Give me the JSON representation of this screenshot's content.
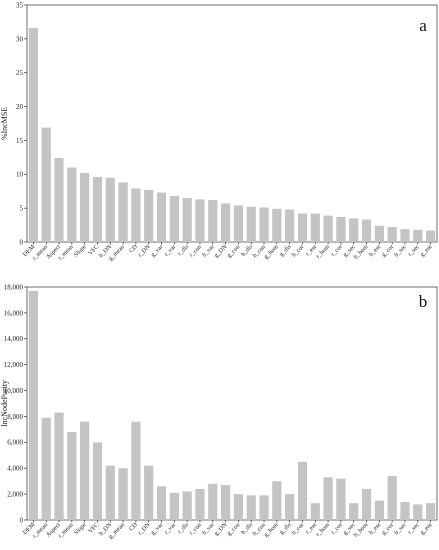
{
  "chart_data": [
    {
      "type": "bar",
      "panel_label": "a",
      "ylabel": "%IncMSE",
      "ylim": [
        0,
        35
      ],
      "yticks": [
        "0",
        "5",
        "10",
        "15",
        "20",
        "25",
        "30",
        "35"
      ],
      "ytick_values": [
        0,
        5,
        10,
        15,
        20,
        25,
        30,
        35
      ],
      "grid": false,
      "categories": [
        "DEM",
        "r_mean",
        "Aspect",
        "r_mean",
        "Slope",
        "VFC",
        "b_DN",
        "g_mean",
        "CD",
        "r_DN",
        "g_var",
        "r_var",
        "r_dis",
        "r_con",
        "b_var",
        "g_DN",
        "g_con",
        "b_dis",
        "b_con",
        "g_hom",
        "g_dis",
        "b_cor",
        "r_ent",
        "r_hom",
        "r_cor",
        "g_sec",
        "b_hom",
        "b_ent",
        "g_cor",
        "b_sec",
        "r_sec",
        "g_ent"
      ],
      "values": [
        31.6,
        16.9,
        12.4,
        11.0,
        10.2,
        9.6,
        9.5,
        8.8,
        7.9,
        7.7,
        7.3,
        6.8,
        6.5,
        6.3,
        6.2,
        5.7,
        5.4,
        5.2,
        5.1,
        4.9,
        4.8,
        4.2,
        4.2,
        3.9,
        3.7,
        3.5,
        3.3,
        2.4,
        2.2,
        1.9,
        1.8,
        1.7
      ]
    },
    {
      "type": "bar",
      "panel_label": "b",
      "ylabel": "IncNodePurity",
      "ylim": [
        0,
        18000
      ],
      "yticks": [
        "0",
        "2,000",
        "4,000",
        "6,000",
        "8,000",
        "10,000",
        "12,000",
        "14,000",
        "16,000",
        "18,000"
      ],
      "ytick_values": [
        0,
        2000,
        4000,
        6000,
        8000,
        10000,
        12000,
        14000,
        16000,
        18000
      ],
      "grid": false,
      "categories": [
        "DEM",
        "r_mean",
        "Aspect",
        "r_mean",
        "Slope",
        "VFC",
        "b_DN",
        "g_mean",
        "CD",
        "r_DN",
        "g_var",
        "r_var",
        "r_dis",
        "r_con",
        "b_var",
        "g_DN",
        "g_con",
        "b_dis",
        "b_con",
        "g_hom",
        "g_dis",
        "b_cor",
        "r_ent",
        "r_hom",
        "r_cor",
        "g_sec",
        "b_hom",
        "b_ent",
        "g_cor",
        "b_sec",
        "r_sec",
        "g_ent"
      ],
      "values": [
        17700,
        7900,
        8300,
        6800,
        7600,
        6000,
        4200,
        4000,
        7600,
        4200,
        2600,
        2100,
        2200,
        2400,
        2800,
        2700,
        2000,
        1900,
        1900,
        3000,
        2000,
        4500,
        1300,
        3300,
        3200,
        1300,
        2400,
        1500,
        3400,
        1400,
        1200,
        1300
      ]
    }
  ]
}
